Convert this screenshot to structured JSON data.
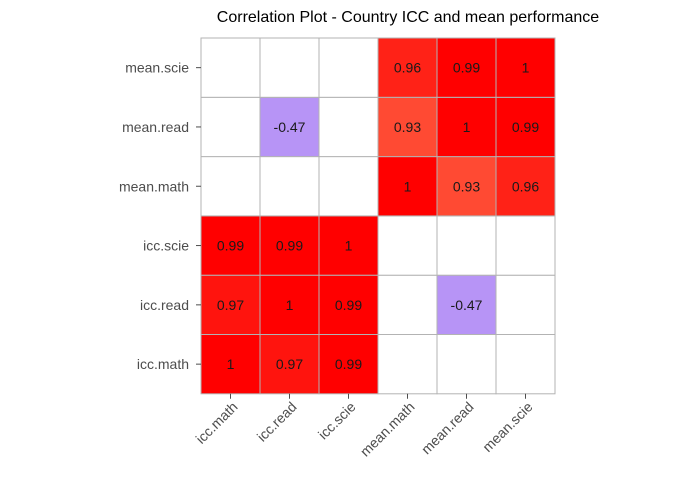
{
  "chart_data": {
    "type": "heatmap",
    "title": "Correlation Plot - Country ICC and mean performance",
    "x_labels": [
      "icc.math",
      "icc.read",
      "icc.scie",
      "mean.math",
      "mean.read",
      "mean.scie"
    ],
    "y_labels": [
      "icc.math",
      "icc.read",
      "icc.scie",
      "mean.math",
      "mean.read",
      "mean.scie"
    ],
    "cells": [
      {
        "x": "icc.math",
        "y": "icc.math",
        "value": 1,
        "label": "1"
      },
      {
        "x": "icc.read",
        "y": "icc.math",
        "value": 0.97,
        "label": "0.97"
      },
      {
        "x": "icc.scie",
        "y": "icc.math",
        "value": 0.99,
        "label": "0.99"
      },
      {
        "x": "icc.math",
        "y": "icc.read",
        "value": 0.97,
        "label": "0.97"
      },
      {
        "x": "icc.read",
        "y": "icc.read",
        "value": 1,
        "label": "1"
      },
      {
        "x": "icc.scie",
        "y": "icc.read",
        "value": 0.99,
        "label": "0.99"
      },
      {
        "x": "mean.read",
        "y": "icc.read",
        "value": -0.47,
        "label": "-0.47"
      },
      {
        "x": "icc.math",
        "y": "icc.scie",
        "value": 0.99,
        "label": "0.99"
      },
      {
        "x": "icc.read",
        "y": "icc.scie",
        "value": 0.99,
        "label": "0.99"
      },
      {
        "x": "icc.scie",
        "y": "icc.scie",
        "value": 1,
        "label": "1"
      },
      {
        "x": "mean.math",
        "y": "mean.math",
        "value": 1,
        "label": "1"
      },
      {
        "x": "mean.read",
        "y": "mean.math",
        "value": 0.93,
        "label": "0.93"
      },
      {
        "x": "mean.scie",
        "y": "mean.math",
        "value": 0.96,
        "label": "0.96"
      },
      {
        "x": "icc.read",
        "y": "mean.read",
        "value": -0.47,
        "label": "-0.47"
      },
      {
        "x": "mean.math",
        "y": "mean.read",
        "value": 0.93,
        "label": "0.93"
      },
      {
        "x": "mean.read",
        "y": "mean.read",
        "value": 1,
        "label": "1"
      },
      {
        "x": "mean.scie",
        "y": "mean.read",
        "value": 0.99,
        "label": "0.99"
      },
      {
        "x": "mean.math",
        "y": "mean.scie",
        "value": 0.96,
        "label": "0.96"
      },
      {
        "x": "mean.read",
        "y": "mean.scie",
        "value": 0.99,
        "label": "0.99"
      },
      {
        "x": "mean.scie",
        "y": "mean.scie",
        "value": 1,
        "label": "1"
      }
    ],
    "colors": {
      "high_positive": "#ff0000",
      "positive_low": "#ff4a33",
      "negative": "#b794f6",
      "empty": "#ffffff",
      "grid": "#b3b3b3"
    },
    "legend": "none",
    "grid": true
  }
}
